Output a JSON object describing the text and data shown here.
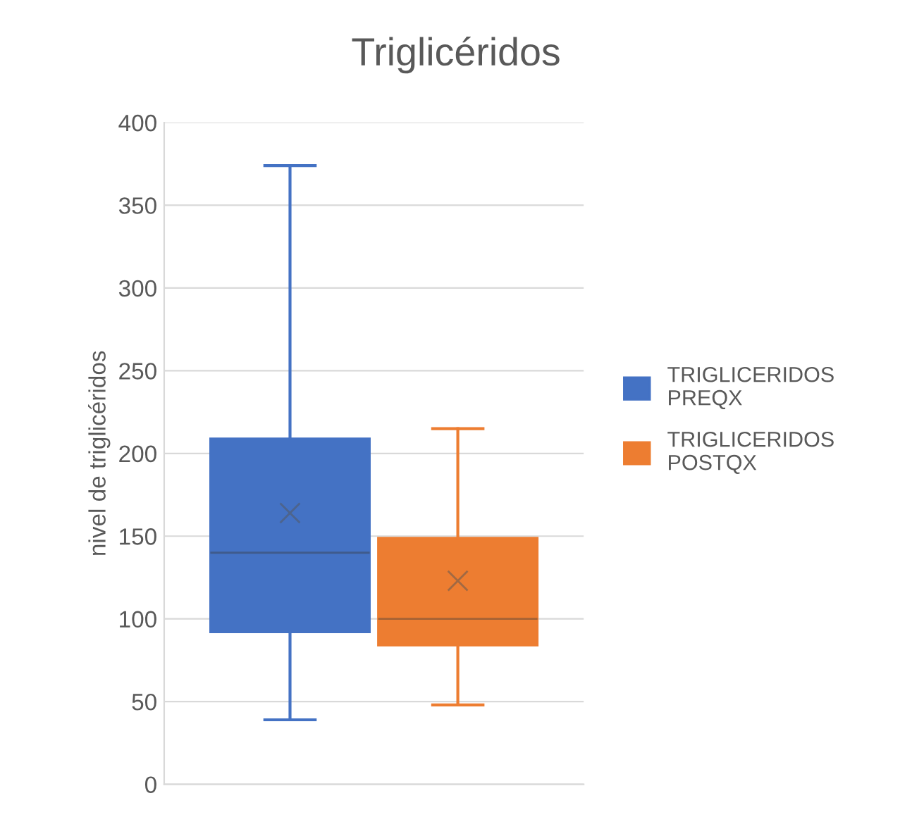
{
  "chart_data": {
    "type": "box",
    "title": "Triglicéridos",
    "ylabel": "nivel de triglicéridos",
    "categories": [
      null
    ],
    "series": [
      {
        "name": "TRIGLICERIDOS\nPREQX",
        "color": "#4472c4",
        "boxes": [
          {
            "low": 39,
            "q1": 92,
            "median": 140,
            "q3": 209,
            "high": 374,
            "mean": 164
          }
        ]
      },
      {
        "name": "TRIGLICERIDOS\nPOSTQX",
        "color": "#ed7d31",
        "boxes": [
          {
            "low": 48,
            "q1": 84,
            "median": 100,
            "q3": 149,
            "high": 215,
            "mean": 123
          }
        ]
      }
    ],
    "ylim": [
      0,
      400
    ],
    "yticks": [
      0,
      50,
      100,
      150,
      200,
      250,
      300,
      350,
      400
    ],
    "grid": "y",
    "legend": "right"
  }
}
